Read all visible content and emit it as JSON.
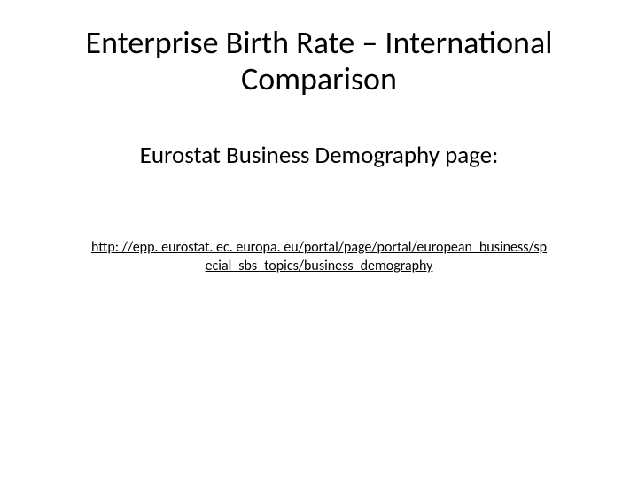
{
  "slide": {
    "title": "Enterprise Birth Rate – International Comparison",
    "subtitle": "Eurostat Business Demography page:",
    "link_line1": "http: //epp. eurostat. ec. europa. eu/portal/page/portal/european_business/sp",
    "link_line2": "ecial_sbs_topics/business_demography"
  },
  "styling": {
    "background_color": "#ffffff",
    "text_color": "#000000",
    "title_fontsize": 36,
    "subtitle_fontsize": 27,
    "link_fontsize": 16,
    "font_family": "Calibri"
  }
}
